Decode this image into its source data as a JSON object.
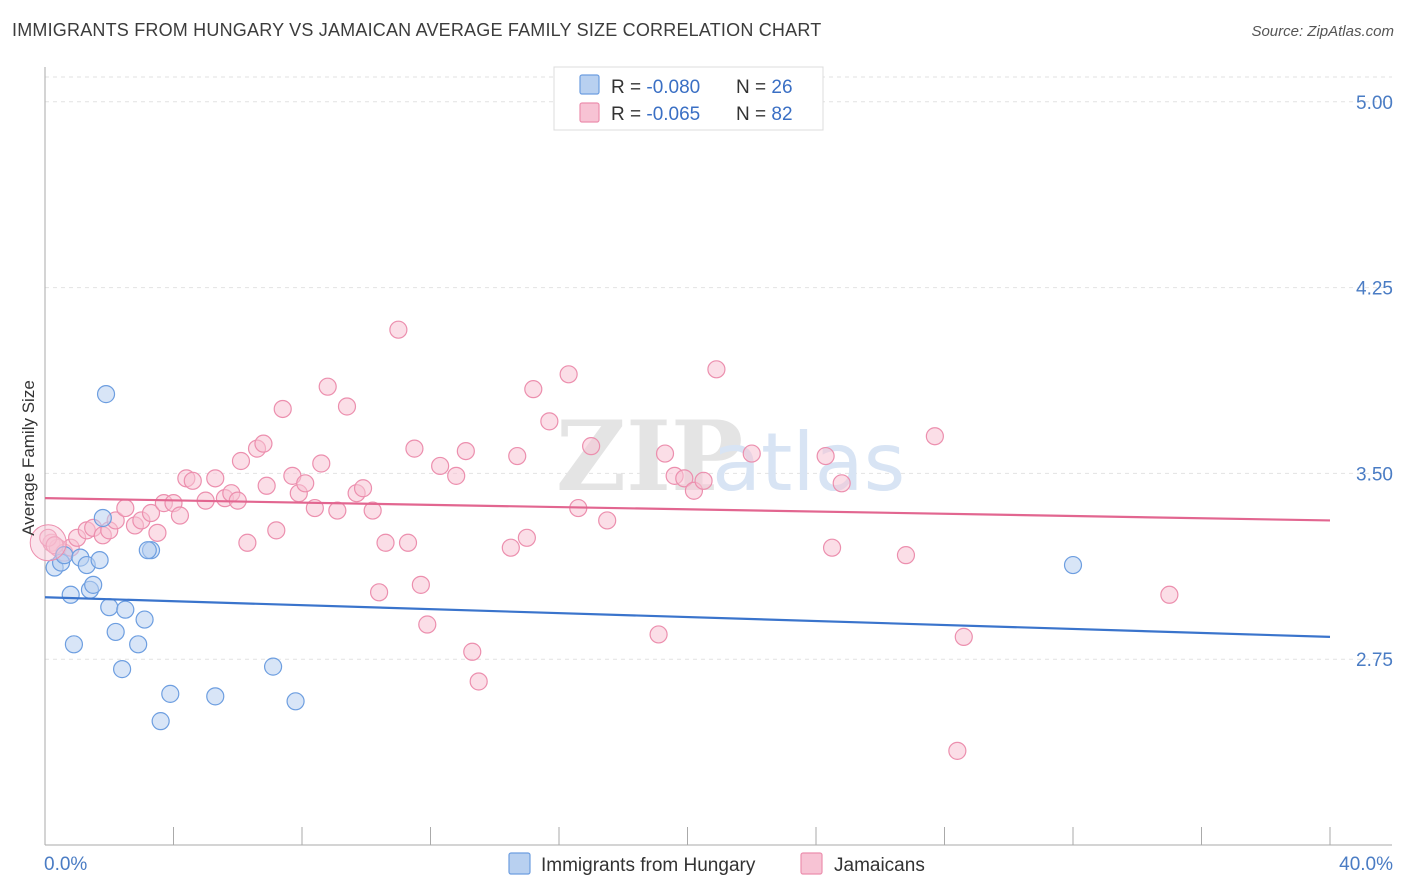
{
  "header": {
    "title": "IMMIGRANTS FROM HUNGARY VS JAMAICAN AVERAGE FAMILY SIZE CORRELATION CHART",
    "source": "Source: ZipAtlas.com"
  },
  "watermark": {
    "zip": "ZIP",
    "atlas": "atlas"
  },
  "colors": {
    "blue_fill": "#b8d0f0",
    "blue_stroke": "#6d9ee0",
    "blue_line": "#3a74cc",
    "pink_fill": "#f7c3d4",
    "pink_stroke": "#ec8fae",
    "pink_line": "#e26690",
    "grid": "#e2e2e2",
    "axis": "#aaaaaa"
  },
  "legend": {
    "rows": [
      {
        "r_label": "R = ",
        "r_value": "-0.080",
        "n_label": "N = ",
        "n_value": "26"
      },
      {
        "r_label": "R = ",
        "r_value": "-0.065",
        "n_label": "N = ",
        "n_value": "82"
      }
    ]
  },
  "chart_data": {
    "type": "scatter",
    "title": "IMMIGRANTS FROM HUNGARY VS JAMAICAN AVERAGE FAMILY SIZE CORRELATION CHART",
    "xlabel": "",
    "ylabel": "Average Family Size",
    "xlim": [
      0,
      40
    ],
    "ylim": [
      2.0,
      5.1
    ],
    "x_tick_labels": [
      {
        "value": 0,
        "label": "0.0%"
      },
      {
        "value": 40,
        "label": "40.0%"
      }
    ],
    "y_ticks": [
      2.75,
      3.5,
      4.25,
      5.0
    ],
    "y_tick_labels": [
      "2.75",
      "3.50",
      "4.25",
      "5.00"
    ],
    "grid": true,
    "legend_position": "top-center",
    "series": [
      {
        "name": "Immigrants from Hungary",
        "r": -0.08,
        "n": 26,
        "trend": {
          "x": [
            0,
            40
          ],
          "y": [
            3.0,
            2.84
          ]
        },
        "points": [
          [
            0.3,
            3.12
          ],
          [
            0.5,
            3.14
          ],
          [
            0.6,
            3.17
          ],
          [
            0.8,
            3.01
          ],
          [
            0.9,
            2.81
          ],
          [
            1.1,
            3.16
          ],
          [
            1.3,
            3.13
          ],
          [
            1.4,
            3.03
          ],
          [
            1.5,
            3.05
          ],
          [
            1.7,
            3.15
          ],
          [
            1.8,
            3.32
          ],
          [
            2.0,
            2.96
          ],
          [
            2.2,
            2.86
          ],
          [
            2.4,
            2.71
          ],
          [
            2.5,
            2.95
          ],
          [
            2.9,
            2.81
          ],
          [
            3.1,
            2.91
          ],
          [
            3.3,
            3.19
          ],
          [
            3.6,
            2.5
          ],
          [
            3.9,
            2.61
          ],
          [
            5.3,
            2.6
          ],
          [
            7.1,
            2.72
          ],
          [
            7.8,
            2.58
          ],
          [
            1.9,
            3.82
          ],
          [
            3.2,
            3.19
          ],
          [
            32.0,
            3.13
          ]
        ]
      },
      {
        "name": "Jamaicans",
        "r": -0.065,
        "n": 82,
        "trend": {
          "x": [
            0,
            40
          ],
          "y": [
            3.4,
            3.31
          ]
        },
        "points": [
          [
            0.2,
            3.22
          ],
          [
            0.4,
            3.2
          ],
          [
            0.6,
            3.18
          ],
          [
            0.8,
            3.2
          ],
          [
            1.0,
            3.24
          ],
          [
            1.3,
            3.27
          ],
          [
            1.5,
            3.28
          ],
          [
            1.8,
            3.25
          ],
          [
            2.0,
            3.27
          ],
          [
            2.2,
            3.31
          ],
          [
            2.5,
            3.36
          ],
          [
            2.8,
            3.29
          ],
          [
            3.0,
            3.31
          ],
          [
            3.3,
            3.34
          ],
          [
            3.5,
            3.26
          ],
          [
            3.7,
            3.38
          ],
          [
            4.0,
            3.38
          ],
          [
            4.2,
            3.33
          ],
          [
            4.4,
            3.48
          ],
          [
            4.6,
            3.47
          ],
          [
            5.0,
            3.39
          ],
          [
            5.3,
            3.48
          ],
          [
            5.6,
            3.4
          ],
          [
            5.8,
            3.42
          ],
          [
            6.0,
            3.39
          ],
          [
            6.1,
            3.55
          ],
          [
            6.3,
            3.22
          ],
          [
            6.6,
            3.6
          ],
          [
            6.8,
            3.62
          ],
          [
            6.9,
            3.45
          ],
          [
            7.2,
            3.27
          ],
          [
            7.4,
            3.76
          ],
          [
            7.7,
            3.49
          ],
          [
            7.9,
            3.42
          ],
          [
            8.1,
            3.46
          ],
          [
            8.4,
            3.36
          ],
          [
            8.6,
            3.54
          ],
          [
            8.8,
            3.85
          ],
          [
            9.1,
            3.35
          ],
          [
            9.4,
            3.77
          ],
          [
            9.7,
            3.42
          ],
          [
            9.9,
            3.44
          ],
          [
            10.2,
            3.35
          ],
          [
            10.4,
            3.02
          ],
          [
            10.6,
            3.22
          ],
          [
            11.0,
            4.08
          ],
          [
            11.3,
            3.22
          ],
          [
            11.5,
            3.6
          ],
          [
            11.7,
            3.05
          ],
          [
            11.9,
            2.89
          ],
          [
            12.3,
            3.53
          ],
          [
            12.8,
            3.49
          ],
          [
            13.1,
            3.59
          ],
          [
            13.3,
            2.78
          ],
          [
            13.5,
            2.66
          ],
          [
            14.5,
            3.2
          ],
          [
            14.7,
            3.57
          ],
          [
            15.0,
            3.24
          ],
          [
            15.2,
            3.84
          ],
          [
            15.7,
            3.71
          ],
          [
            16.3,
            3.9
          ],
          [
            16.6,
            3.36
          ],
          [
            17.0,
            3.61
          ],
          [
            17.5,
            3.31
          ],
          [
            19.1,
            2.85
          ],
          [
            19.3,
            3.58
          ],
          [
            19.6,
            3.49
          ],
          [
            19.9,
            3.48
          ],
          [
            20.2,
            3.43
          ],
          [
            20.5,
            3.47
          ],
          [
            20.9,
            3.92
          ],
          [
            22.0,
            3.58
          ],
          [
            24.3,
            3.57
          ],
          [
            24.5,
            3.2
          ],
          [
            24.8,
            3.46
          ],
          [
            26.8,
            3.17
          ],
          [
            27.7,
            3.65
          ],
          [
            28.4,
            2.38
          ],
          [
            28.6,
            2.84
          ],
          [
            35.0,
            3.01
          ],
          [
            0.1,
            3.24
          ],
          [
            0.3,
            3.21
          ]
        ]
      }
    ]
  }
}
